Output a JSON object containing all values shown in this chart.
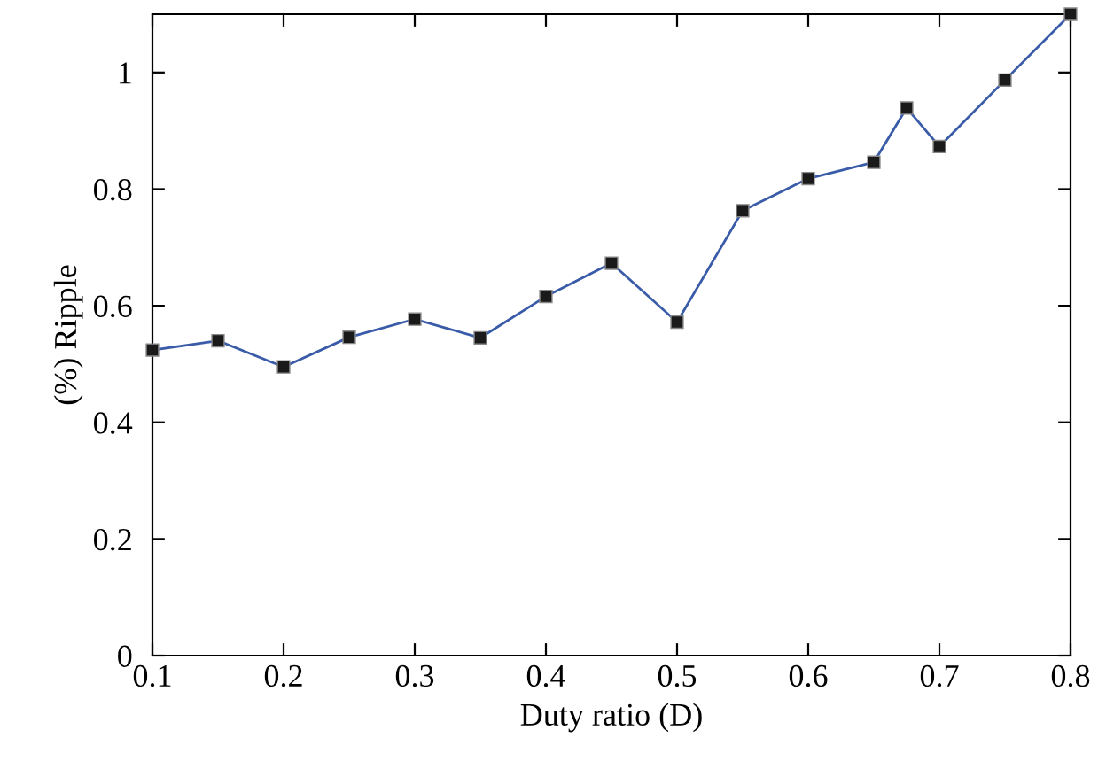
{
  "chart_data": {
    "type": "line",
    "xlabel": "Duty ratio (D)",
    "ylabel": "(%) Ripple",
    "x": [
      0.1,
      0.15,
      0.2,
      0.25,
      0.3,
      0.35,
      0.4,
      0.45,
      0.5,
      0.55,
      0.6,
      0.65,
      0.675,
      0.7,
      0.75,
      0.8
    ],
    "series": [
      {
        "color": "#3a5ca8",
        "values": [
          0.524,
          0.54,
          0.495,
          0.546,
          0.577,
          0.545,
          0.616,
          0.673,
          0.572,
          0.763,
          0.818,
          0.846,
          0.939,
          0.873,
          0.987,
          1.1
        ]
      }
    ],
    "marker": "square",
    "line_style": "solid",
    "grid": false,
    "legend": false,
    "xlim": [
      0.1,
      0.8
    ],
    "xticks": [
      0.1,
      0.2,
      0.3,
      0.4,
      0.5,
      0.6,
      0.7,
      0.8
    ],
    "ylim": [
      0,
      1.1
    ],
    "yticks": [
      0,
      0.2,
      0.4,
      0.6,
      0.8,
      1
    ]
  }
}
